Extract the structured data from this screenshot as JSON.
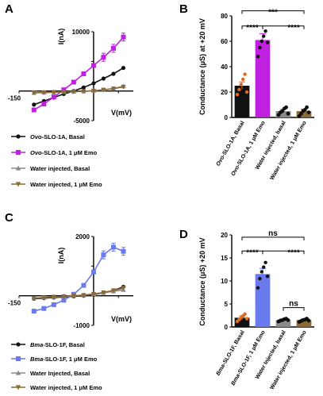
{
  "panels": {
    "A": "A",
    "B": "B",
    "C": "C",
    "D": "D"
  },
  "colors": {
    "black": "#111111",
    "purple": "#c020e0",
    "blue": "#6a7bef",
    "gray": "#8a8a8a",
    "brown": "#8c6a38",
    "orange_points": "#e06a20"
  },
  "chart_data": [
    {
      "id": "A",
      "type": "line",
      "xlabel": "V(mV)",
      "ylabel": "I(nA)",
      "x_tick_labels": [
        "-150"
      ],
      "y_tick_labels": [
        "10000",
        "-5000"
      ],
      "xlim": [
        -150,
        80
      ],
      "ylim": [
        -5000,
        10000
      ],
      "x": [
        -120,
        -100,
        -80,
        -60,
        -40,
        -20,
        0,
        20,
        40,
        60
      ],
      "series": [
        {
          "name": "Ovo-SLO-1A, Basal",
          "legend_italic": "Ovo",
          "legend_rest": "-SLO-1A, Basal",
          "color": "black",
          "marker": "circle",
          "values": [
            -2300,
            -1700,
            -1100,
            -500,
            0,
            600,
            1300,
            2100,
            2900,
            3900
          ]
        },
        {
          "name": "Ovo-SLO-1A, 1 μM Emo",
          "legend_italic": "Ovo",
          "legend_rest": "-SLO-1A, 1 μM Emo",
          "color": "purple",
          "marker": "square",
          "values": [
            -3200,
            -2200,
            -1000,
            200,
            1500,
            2900,
            4300,
            5700,
            7200,
            9100
          ]
        },
        {
          "name": "Water injected, Basal",
          "legend_italic": "",
          "legend_rest": "Water injected, Basal",
          "color": "gray",
          "marker": "triangle",
          "values": [
            -300,
            -250,
            -200,
            -150,
            -100,
            -50,
            50,
            200,
            400,
            800
          ]
        },
        {
          "name": "Water injected, 1 μM Emo",
          "legend_italic": "",
          "legend_rest": "Water injected, 1 μM Emo",
          "color": "brown",
          "marker": "triangle-down",
          "values": [
            -300,
            -250,
            -200,
            -150,
            -100,
            -50,
            50,
            200,
            400,
            700
          ]
        }
      ]
    },
    {
      "id": "B",
      "type": "bar",
      "ylabel": "Conductance (μS) at +20 mV",
      "y_tick_labels": [
        "0",
        "20",
        "40",
        "60",
        "80"
      ],
      "ylim": [
        0,
        80
      ],
      "categories": [
        "Ovo-SLO-1A, Basal",
        "Ovo-SLO-1A, 1 μM Emo",
        "Water injected, basal",
        "Water injected, 1 μM Emo"
      ],
      "category_italic": [
        "Ovo",
        "Ovo",
        "",
        ""
      ],
      "category_rest": [
        "-SLO-1A, Basal",
        "-SLO-1A, 1 μM Emo",
        "Water injected, basal",
        "Water injected, 1 μM Emo"
      ],
      "values": [
        25,
        61,
        5,
        5
      ],
      "errors": [
        3,
        5,
        1.5,
        1.5
      ],
      "bar_colors": [
        "black",
        "purple",
        "gray",
        "brown"
      ],
      "points": [
        [
          18,
          22,
          26,
          30,
          34,
          20
        ],
        [
          48,
          55,
          60,
          64,
          68,
          59
        ],
        [
          2,
          4,
          5,
          7,
          8,
          3
        ],
        [
          1,
          3,
          5,
          6,
          8,
          4
        ]
      ],
      "point_colors": [
        "orange_points",
        "black",
        "black",
        "black"
      ],
      "significance": [
        {
          "from": 0,
          "to": 1,
          "label": "****",
          "level": 72
        },
        {
          "from": 0,
          "to": 3,
          "label": "***",
          "level": 84
        },
        {
          "from": 1,
          "to": 3,
          "label": "****",
          "level": 72
        }
      ]
    },
    {
      "id": "C",
      "type": "line",
      "xlabel": "V(mV)",
      "ylabel": "I(nA)",
      "x_tick_labels": [
        "-150"
      ],
      "y_tick_labels": [
        "2000",
        "-1000"
      ],
      "xlim": [
        -150,
        80
      ],
      "ylim": [
        -1000,
        2000
      ],
      "x": [
        -120,
        -100,
        -80,
        -60,
        -40,
        -20,
        0,
        20,
        40,
        60
      ],
      "series": [
        {
          "name": "Bma-SLO-1F, Basal",
          "legend_italic": "Bma",
          "legend_rest": "-SLO-1F, Basal",
          "color": "black",
          "marker": "circle",
          "values": [
            -100,
            -80,
            -60,
            -40,
            -20,
            0,
            40,
            100,
            180,
            300
          ]
        },
        {
          "name": "Bma-SLO-1F, 1 μM Emo",
          "legend_italic": "Bma",
          "legend_rest": "-SLO-1F, 1 μM Emo",
          "color": "blue",
          "marker": "square",
          "values": [
            -520,
            -430,
            -300,
            -150,
            50,
            350,
            800,
            1380,
            1640,
            1500
          ]
        },
        {
          "name": "Water Injected, Basal",
          "legend_italic": "",
          "legend_rest": "Water Injected, Basal",
          "color": "gray",
          "marker": "triangle",
          "values": [
            -80,
            -60,
            -40,
            -20,
            0,
            20,
            60,
            100,
            150,
            200
          ]
        },
        {
          "name": "Water injected, 1 μM Emo",
          "legend_italic": "",
          "legend_rest": "Water injected, 1 μM Emo",
          "color": "brown",
          "marker": "triangle-down",
          "values": [
            -80,
            -60,
            -40,
            -20,
            0,
            20,
            60,
            110,
            180,
            260
          ]
        }
      ]
    },
    {
      "id": "D",
      "type": "bar",
      "ylabel": "Conductance (μS) +20 mV",
      "y_tick_labels": [
        "0",
        "5",
        "10",
        "15",
        "20"
      ],
      "ylim": [
        0,
        20
      ],
      "categories": [
        "Bma-SLO-1F, Basal",
        "Bma-SLO-1F, 1 μM Emo",
        "Water Injected, basal",
        "Water injected, 1 μM Emo"
      ],
      "category_italic": [
        "Bma",
        "Bma",
        "",
        ""
      ],
      "category_rest": [
        "-SLO-1F, Basal",
        "-SLO-1F, 1 μM Emo",
        "Water Injected, basal",
        "Water injected, 1 μM Emo"
      ],
      "values": [
        2.0,
        11.5,
        1.5,
        1.5
      ],
      "errors": [
        0.4,
        1.2,
        0.2,
        0.2
      ],
      "bar_colors": [
        "black",
        "blue",
        "gray",
        "brown"
      ],
      "points": [
        [
          1.2,
          1.6,
          2.0,
          2.4,
          2.8,
          1.8
        ],
        [
          8.5,
          10.5,
          12.0,
          13.0,
          14.0,
          11.0
        ],
        [
          1.2,
          1.4,
          1.5,
          1.7,
          1.8,
          1.5
        ],
        [
          1.1,
          1.3,
          1.5,
          1.6,
          1.8,
          1.4
        ]
      ],
      "point_colors": [
        "orange_points",
        "black",
        "black",
        "black"
      ],
      "significance": [
        {
          "from": 0,
          "to": 1,
          "label": "****",
          "level": 16.5
        },
        {
          "from": 0,
          "to": 3,
          "label": "ns",
          "level": 19.5
        },
        {
          "from": 1,
          "to": 3,
          "label": "****",
          "level": 16.5
        },
        {
          "from": 2,
          "to": 3,
          "label": "ns",
          "level": 4.2
        }
      ]
    }
  ]
}
